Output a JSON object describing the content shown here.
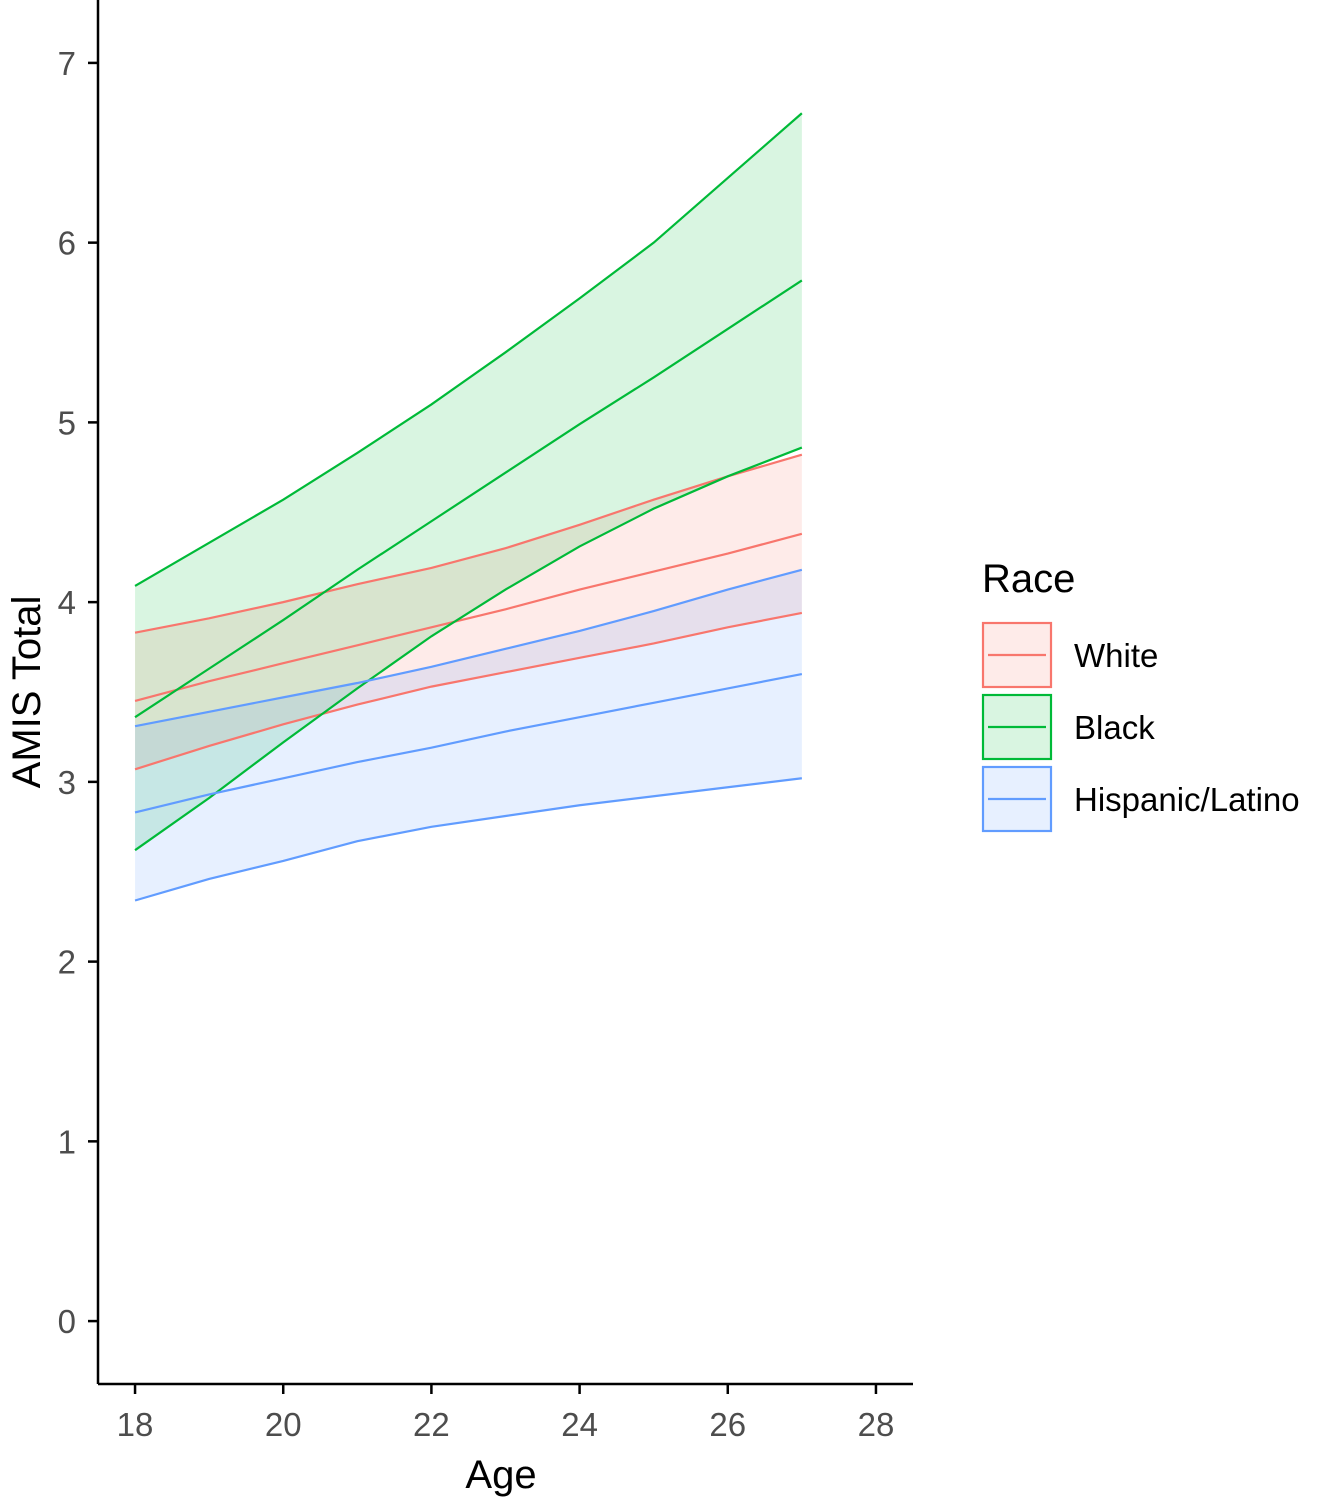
{
  "chart_data": {
    "type": "line",
    "title": "",
    "xlabel": "Age",
    "ylabel": "AMIS Total",
    "xlim": [
      17.5,
      28.5
    ],
    "ylim": [
      -0.35,
      7.35
    ],
    "xticks": [
      18,
      20,
      22,
      24,
      26,
      28
    ],
    "yticks": [
      0,
      1,
      2,
      3,
      4,
      5,
      6,
      7
    ],
    "xtick_labels": [
      "18",
      "20",
      "22",
      "24",
      "26",
      "28"
    ],
    "ytick_labels": [
      "0",
      "1",
      "2",
      "3",
      "4",
      "5",
      "6",
      "7"
    ],
    "grid": false,
    "legend": {
      "title": "Race",
      "position": "right"
    },
    "x": [
      18,
      19,
      20,
      21,
      22,
      23,
      24,
      25,
      26,
      27
    ],
    "series": [
      {
        "name": "White",
        "color": "#F8766D",
        "fit": [
          3.45,
          3.56,
          3.66,
          3.76,
          3.86,
          3.96,
          4.07,
          4.17,
          4.27,
          4.38
        ],
        "lower": [
          3.07,
          3.2,
          3.32,
          3.43,
          3.53,
          3.61,
          3.69,
          3.77,
          3.86,
          3.94
        ],
        "upper": [
          3.83,
          3.91,
          4.0,
          4.1,
          4.19,
          4.3,
          4.43,
          4.57,
          4.7,
          4.82
        ]
      },
      {
        "name": "Black",
        "color": "#00BA38",
        "fit": [
          3.36,
          3.63,
          3.9,
          4.18,
          4.45,
          4.72,
          4.99,
          5.25,
          5.52,
          5.79
        ],
        "lower": [
          2.62,
          2.91,
          3.22,
          3.52,
          3.81,
          4.07,
          4.31,
          4.52,
          4.7,
          4.86
        ],
        "upper": [
          4.09,
          4.33,
          4.57,
          4.83,
          5.1,
          5.39,
          5.69,
          6.0,
          6.36,
          6.72
        ]
      },
      {
        "name": "Hispanic/Latino",
        "color": "#619CFF",
        "fit": [
          2.83,
          2.93,
          3.02,
          3.11,
          3.19,
          3.28,
          3.36,
          3.44,
          3.52,
          3.6
        ],
        "lower": [
          2.34,
          2.46,
          2.56,
          2.67,
          2.75,
          2.81,
          2.87,
          2.92,
          2.97,
          3.02
        ],
        "upper": [
          3.31,
          3.39,
          3.47,
          3.55,
          3.64,
          3.74,
          3.84,
          3.95,
          4.07,
          4.18
        ]
      }
    ]
  }
}
